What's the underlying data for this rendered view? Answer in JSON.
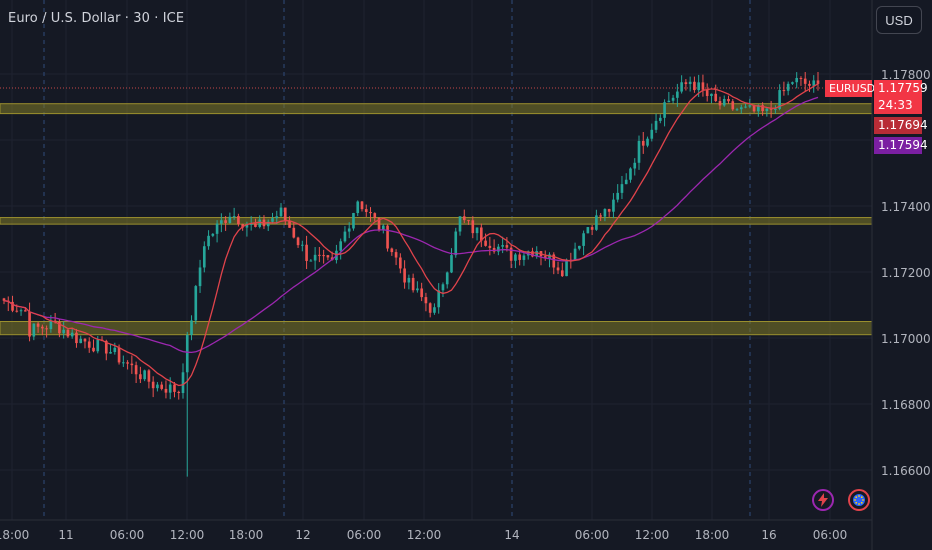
{
  "title": "Euro / U.S. Dollar · 30 · ICE",
  "currency_button": "USD",
  "symbol_label": "EURUSD",
  "last_price": "1.17759",
  "countdown": "24:33",
  "ma_fast_value": "1.17694",
  "ma_slow_value": "1.17594",
  "colors": {
    "background": "#151924",
    "up": "#26a69a",
    "down": "#ef5350",
    "zone": "#807a26",
    "ma_fast": "#e0434b",
    "ma_slow": "#9c27b0",
    "last_price_tag": "#f23645",
    "ma_fast_tag": "#b82c36",
    "ma_slow_tag": "#7b1fa2"
  },
  "icons": [
    "lightning-alert-icon",
    "economic-events-icon"
  ],
  "chart_data": {
    "type": "candlestick",
    "ylim": [
      1.1655,
      1.1788
    ],
    "ytick_labels": [
      "1.17800",
      "1.17400",
      "1.17200",
      "1.17000",
      "1.16800",
      "1.16600"
    ],
    "xtick_labels": [
      "18:00",
      "11",
      "06:00",
      "12:00",
      "18:00",
      "12",
      "06:00",
      "12:00",
      "14",
      "06:00",
      "12:00",
      "18:00",
      "16",
      "06:00"
    ],
    "zones": [
      {
        "low": 1.1768,
        "high": 1.1771
      },
      {
        "low": 1.17345,
        "high": 1.17365
      },
      {
        "low": 1.1701,
        "high": 1.1705
      }
    ],
    "key_points": [
      [
        1.1712,
        1.1708
      ],
      [
        1.1702,
        1.1704
      ],
      [
        1.1705,
        1.17
      ],
      [
        1.17,
        1.1697
      ],
      [
        1.1698,
        1.1692
      ],
      [
        1.1692,
        1.1686
      ],
      [
        1.1686,
        1.1684
      ],
      [
        1.1684,
        1.1729
      ],
      [
        1.1729,
        1.1738
      ],
      [
        1.1738,
        1.1733
      ],
      [
        1.1733,
        1.1738
      ],
      [
        1.1738,
        1.1725
      ],
      [
        1.1725,
        1.1722
      ],
      [
        1.1722,
        1.1742
      ],
      [
        1.1742,
        1.1732
      ],
      [
        1.1732,
        1.1716
      ],
      [
        1.1716,
        1.1708
      ],
      [
        1.1708,
        1.1736
      ],
      [
        1.1736,
        1.173
      ],
      [
        1.173,
        1.1725
      ],
      [
        1.1725,
        1.1727
      ],
      [
        1.1727,
        1.1721
      ],
      [
        1.1721,
        1.1734
      ],
      [
        1.1734,
        1.174
      ],
      [
        1.174,
        1.1758
      ],
      [
        1.1758,
        1.1771
      ],
      [
        1.1771,
        1.1778
      ],
      [
        1.1778,
        1.1771
      ],
      [
        1.1771,
        1.1769
      ],
      [
        1.1769,
        1.1768
      ],
      [
        1.1768,
        1.1778
      ],
      [
        1.1778,
        1.1776
      ]
    ],
    "ma_fast_end": 1.17694,
    "ma_slow_end": 1.17594
  }
}
